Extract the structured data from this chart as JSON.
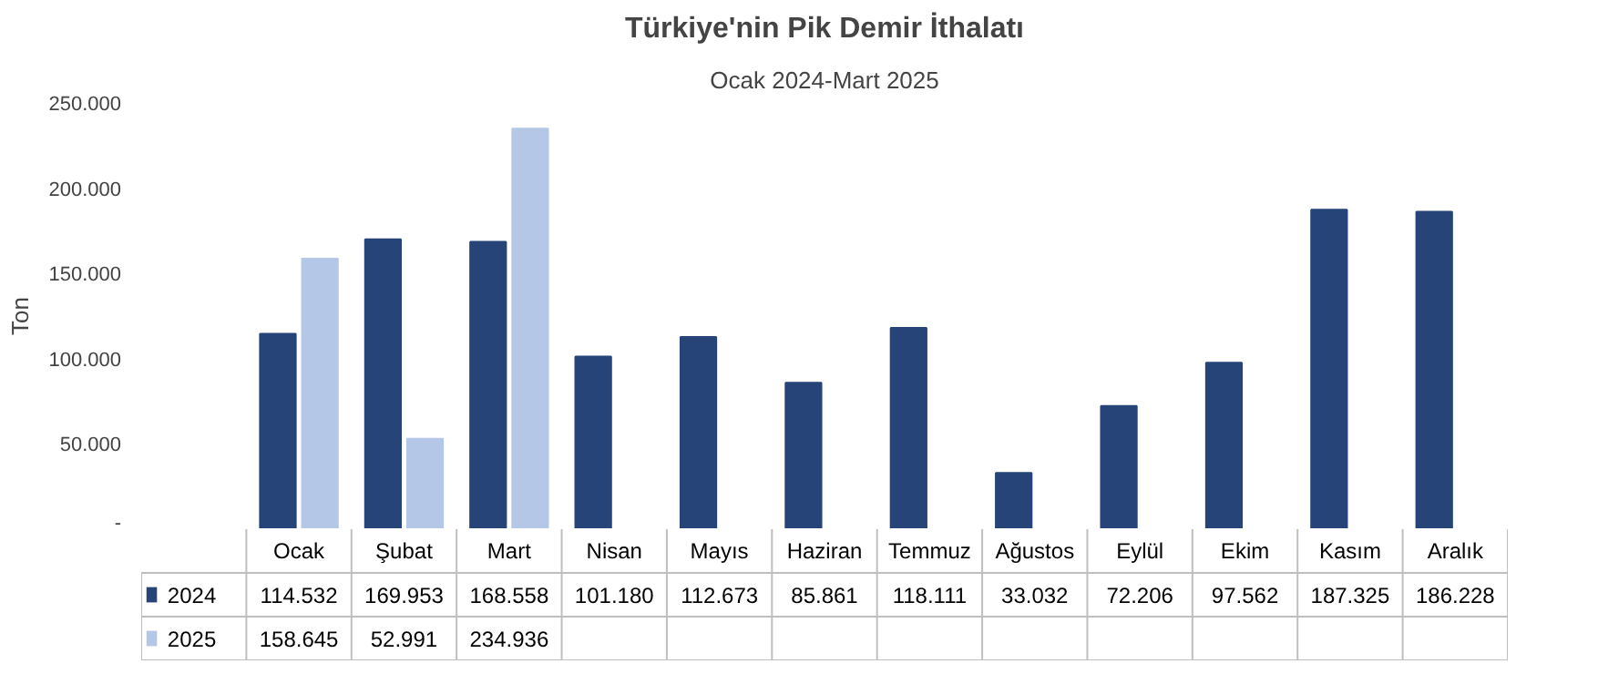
{
  "chart_data": {
    "type": "bar",
    "title": "Türkiye'nin Pik Demir İthalatı",
    "subtitle": "Ocak 2024-Mart 2025",
    "ylabel": "Ton",
    "categories": [
      "Ocak",
      "Şubat",
      "Mart",
      "Nisan",
      "Mayıs",
      "Haziran",
      "Temmuz",
      "Ağustos",
      "Eylül",
      "Ekim",
      "Kasım",
      "Aralık"
    ],
    "series": [
      {
        "name": "2024",
        "color": "#264478",
        "values": [
          114532,
          169953,
          168558,
          101180,
          112673,
          85861,
          118111,
          33032,
          72206,
          97562,
          187325,
          186228
        ],
        "value_labels": [
          "114.532",
          "169.953",
          "168.558",
          "101.180",
          "112.673",
          "85.861",
          "118.111",
          "33.032",
          "72.206",
          "97.562",
          "187.325",
          "186.228"
        ]
      },
      {
        "name": "2025",
        "color": "#b4c7e7",
        "values": [
          158645,
          52991,
          234936,
          null,
          null,
          null,
          null,
          null,
          null,
          null,
          null,
          null
        ],
        "value_labels": [
          "158.645",
          "52.991",
          "234.936",
          null,
          null,
          null,
          null,
          null,
          null,
          null,
          null,
          null
        ]
      }
    ],
    "ylim": [
      0,
      250000
    ],
    "yticks": [
      {
        "value": 0,
        "label": "-"
      },
      {
        "value": 50000,
        "label": "50.000"
      },
      {
        "value": 100000,
        "label": "100.000"
      },
      {
        "value": 150000,
        "label": "150.000"
      },
      {
        "value": 200000,
        "label": "200.000"
      },
      {
        "value": 250000,
        "label": "250.000"
      }
    ],
    "grid": false,
    "legend": "bottom"
  }
}
